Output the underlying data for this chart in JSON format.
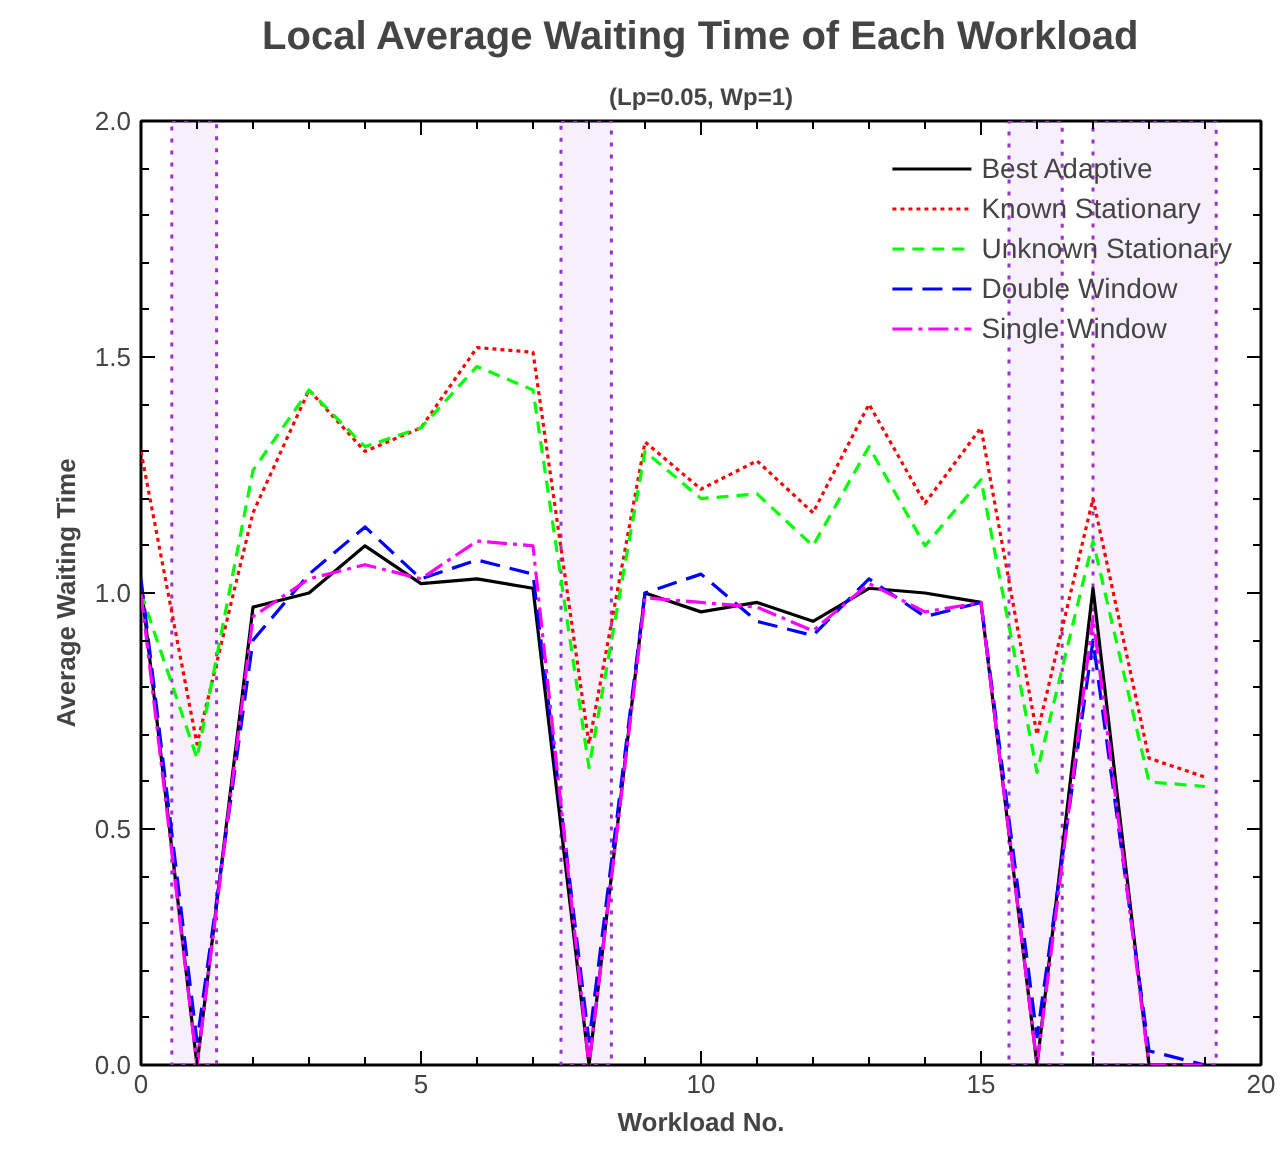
{
  "chart_data": {
    "type": "line",
    "title": "Local Average Waiting Time of Each Workload",
    "subtitle": "(Lp=0.05, Wp=1)",
    "xlabel": "Workload No.",
    "ylabel": "Average Waiting Time",
    "x": [
      0,
      1,
      2,
      3,
      4,
      5,
      6,
      7,
      8,
      9,
      10,
      11,
      12,
      13,
      14,
      15,
      16,
      17,
      18,
      19
    ],
    "xlim": [
      0,
      20
    ],
    "ylim": [
      0,
      2
    ],
    "xticks": [
      0,
      5,
      10,
      15,
      20
    ],
    "yticks": [
      {
        "value": 0,
        "label": "0.0"
      },
      {
        "value": 0.5,
        "label": "0.5"
      },
      {
        "value": 1,
        "label": "1.0"
      },
      {
        "value": 1.5,
        "label": "1.5"
      },
      {
        "value": 2,
        "label": "2.0"
      }
    ],
    "grid": false,
    "legend": "top right",
    "marker": "none",
    "series": [
      {
        "name": "Best Adaptive",
        "color": "#000000",
        "line_style": "solid",
        "values": [
          1.02,
          0.0,
          0.97,
          1.0,
          1.1,
          1.02,
          1.03,
          1.01,
          0.0,
          1.0,
          0.96,
          0.98,
          0.94,
          1.01,
          1.0,
          0.98,
          0.0,
          1.01,
          0.0,
          0.0
        ]
      },
      {
        "name": "Known Stationary",
        "color": "#ff0000",
        "line_style": "dotted",
        "values": [
          1.3,
          0.68,
          1.17,
          1.43,
          1.3,
          1.35,
          1.52,
          1.51,
          0.68,
          1.32,
          1.22,
          1.28,
          1.17,
          1.4,
          1.19,
          1.35,
          0.7,
          1.2,
          0.65,
          0.61
        ]
      },
      {
        "name": "Unknown Stationary",
        "color": "#00ff00",
        "line_style": "dashed",
        "values": [
          1.0,
          0.65,
          1.26,
          1.43,
          1.31,
          1.35,
          1.48,
          1.43,
          0.63,
          1.3,
          1.2,
          1.21,
          1.1,
          1.31,
          1.1,
          1.24,
          0.62,
          1.11,
          0.6,
          0.59
        ]
      },
      {
        "name": "Double Window",
        "color": "#0000ff",
        "line_style": "longdash",
        "values": [
          1.03,
          0.05,
          0.9,
          1.04,
          1.14,
          1.03,
          1.07,
          1.04,
          0.05,
          1.0,
          1.04,
          0.94,
          0.91,
          1.03,
          0.95,
          0.98,
          0.06,
          0.9,
          0.03,
          0.0
        ]
      },
      {
        "name": "Single Window",
        "color": "#ff00ff",
        "line_style": "dashdot",
        "values": [
          1.0,
          0.0,
          0.95,
          1.03,
          1.06,
          1.03,
          1.11,
          1.1,
          0.0,
          0.99,
          0.98,
          0.97,
          0.92,
          1.02,
          0.96,
          0.98,
          0.0,
          0.95,
          0.0,
          0.0
        ]
      }
    ],
    "bands": [
      {
        "axis": "x",
        "from": 0.55,
        "to": 1.35,
        "color": "#9933cc"
      },
      {
        "axis": "x",
        "from": 7.5,
        "to": 8.4,
        "color": "#9933cc"
      },
      {
        "axis": "x",
        "from": 15.5,
        "to": 16.45,
        "color": "#9933cc"
      },
      {
        "axis": "x",
        "from": 17.0,
        "to": 19.2,
        "color": "#9933cc"
      }
    ]
  }
}
